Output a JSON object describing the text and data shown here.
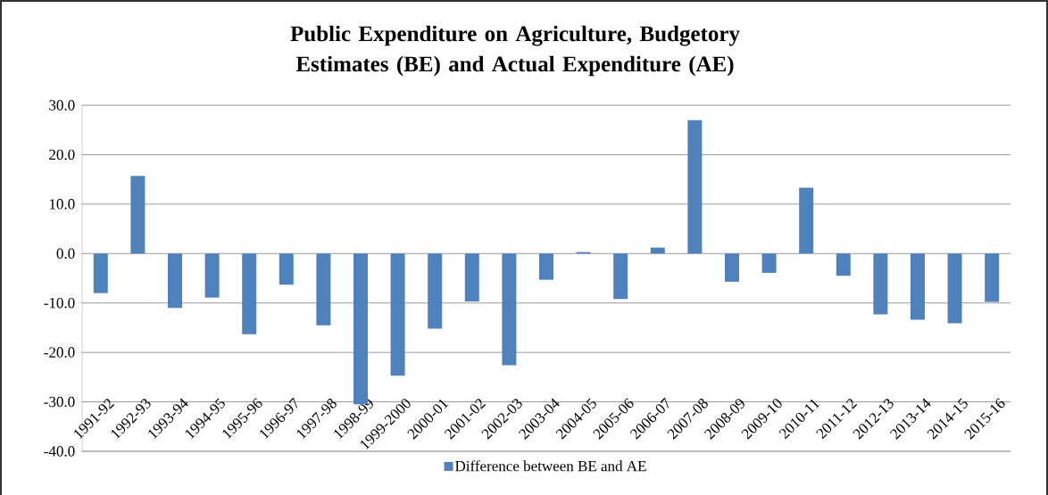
{
  "chart_data": {
    "type": "bar",
    "title": "Public Expenditure on Agriculture, Budgetory Estimates (BE) and Actual Expenditure (AE)",
    "categories": [
      "1991-92",
      "1992-93",
      "1993-94",
      "1994-95",
      "1995-96",
      "1996-97",
      "1997-98",
      "1998-99",
      "1999-2000",
      "2000-01",
      "2001-02",
      "2002-03",
      "2003-04",
      "2004-05",
      "2005-06",
      "2006-07",
      "2007-08",
      "2008-09",
      "2009-10",
      "2010-11",
      "2011-12",
      "2012-13",
      "2013-14",
      "2014-15",
      "2015-16"
    ],
    "series": [
      {
        "name": "Difference between BE and AE",
        "color": "#4f81bd",
        "values": [
          -8.0,
          15.7,
          -11.0,
          -8.9,
          -16.3,
          -6.3,
          -14.5,
          -30.5,
          -24.7,
          -15.2,
          -9.7,
          -22.6,
          -5.3,
          0.3,
          -9.2,
          1.2,
          27.0,
          -5.7,
          -3.9,
          13.3,
          -4.5,
          -12.3,
          -13.4,
          -14.1,
          -9.8
        ]
      }
    ],
    "ylim": [
      -40,
      30
    ],
    "yticks": [
      {
        "value": -40,
        "label": "-40.0"
      },
      {
        "value": -30,
        "label": "-30.0"
      },
      {
        "value": -20,
        "label": "-20.0"
      },
      {
        "value": -10,
        "label": "-10.0"
      },
      {
        "value": 0,
        "label": "0.0"
      },
      {
        "value": 10,
        "label": "10.0"
      },
      {
        "value": 20,
        "label": "20.0"
      },
      {
        "value": 30,
        "label": "30.0"
      }
    ],
    "grid": "y",
    "legend": "bottom"
  }
}
